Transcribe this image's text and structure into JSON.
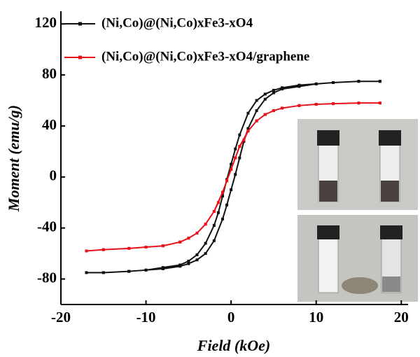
{
  "chart_data": {
    "type": "line",
    "x_label": "Field (kOe)",
    "y_label": "Moment (emu/g)",
    "xlim": [
      -20,
      20.8
    ],
    "ylim": [
      -100,
      130
    ],
    "xticks": [
      -20,
      -10,
      0,
      10,
      20
    ],
    "yticks": [
      -80,
      -40,
      0,
      40,
      80,
      120
    ],
    "series": [
      {
        "name": "(Ni,Co)@(Ni,Co)xFe3-xO4",
        "color": "#111111",
        "x": [
          17.5,
          15,
          12,
          10,
          8,
          6,
          5,
          4,
          3,
          2,
          1,
          0.5,
          0,
          -0.5,
          -1,
          -1.5,
          -2,
          -3,
          -4,
          -5,
          -6,
          -8,
          -10,
          -12,
          -15,
          -17,
          -17,
          -15,
          -12,
          -10,
          -8,
          -6,
          -5,
          -4,
          -3,
          -2,
          -1,
          -0.5,
          0,
          0.5,
          1,
          1.5,
          2,
          3,
          4,
          5,
          6,
          8,
          10,
          12,
          15,
          17.5
        ],
        "values": [
          75,
          75,
          74,
          73,
          72,
          70,
          68,
          65,
          60,
          50,
          33,
          22,
          10,
          -2,
          -15,
          -28,
          -38,
          -52,
          -61,
          -66,
          -69,
          -71,
          -73,
          -74,
          -75,
          -75,
          -75,
          -75,
          -74,
          -73,
          -72,
          -70,
          -68,
          -65,
          -60,
          -50,
          -33,
          -22,
          -10,
          2,
          15,
          28,
          38,
          52,
          61,
          66,
          69,
          71,
          73,
          74,
          75,
          75
        ]
      },
      {
        "name": "(Ni,Co)@(Ni,Co)xFe3-xO4/graphene",
        "color": "#e8121a",
        "x": [
          17.5,
          15,
          12,
          10,
          8,
          6,
          5,
          4,
          3,
          2,
          1,
          0.5,
          0,
          -0.5,
          -1,
          -1.5,
          -2,
          -3,
          -4,
          -5,
          -6,
          -8,
          -10,
          -12,
          -15,
          -17,
          -17,
          -15,
          -12,
          -10,
          -8,
          -6,
          -5,
          -4,
          -3,
          -2,
          -1,
          -0.5,
          0,
          0.5,
          1,
          1.5,
          2,
          3,
          4,
          5,
          6,
          8,
          10,
          12,
          15,
          17.5
        ],
        "values": [
          58,
          58,
          57.5,
          57,
          56,
          54,
          52,
          49,
          44,
          36,
          24,
          15,
          6,
          -3,
          -12,
          -20,
          -27,
          -37,
          -44,
          -48,
          -51,
          -54,
          -55,
          -56,
          -57,
          -58,
          -58,
          -57,
          -56,
          -55,
          -54,
          -51,
          -48,
          -44,
          -37,
          -27,
          -12,
          -3,
          6,
          15,
          24,
          29,
          36,
          44,
          49,
          52,
          54,
          56,
          57,
          57.5,
          58,
          58
        ]
      }
    ]
  }
}
